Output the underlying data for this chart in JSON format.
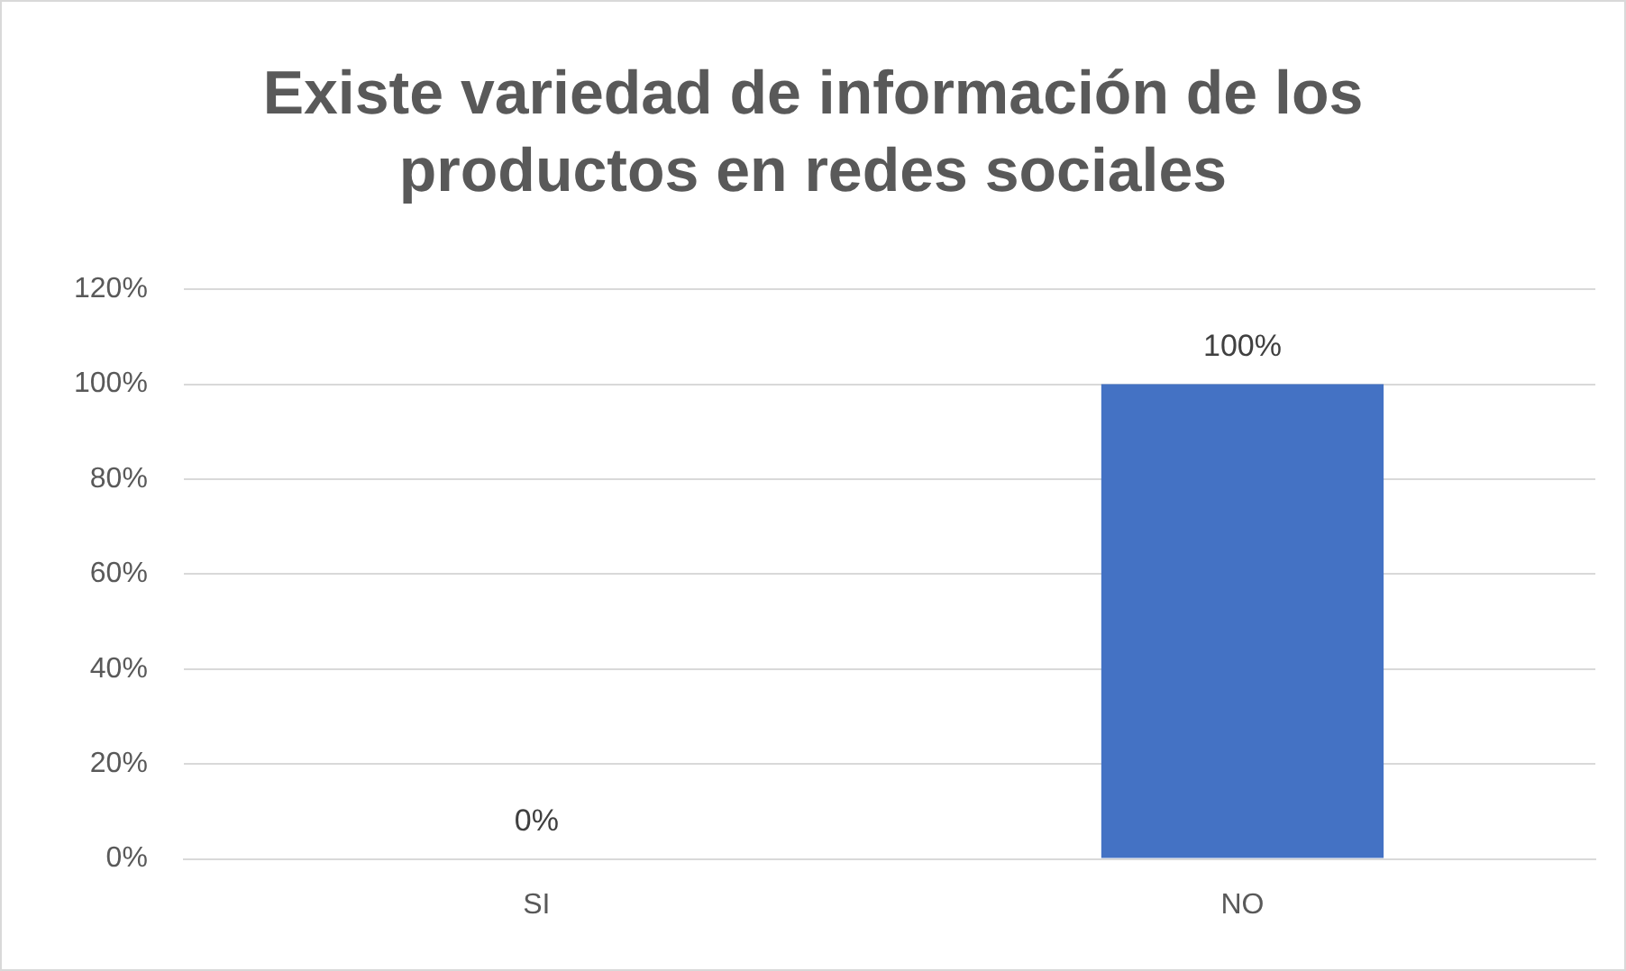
{
  "chart_data": {
    "type": "bar",
    "title": "Existe variedad de información de los productos en redes sociales",
    "categories": [
      "SI",
      "NO"
    ],
    "values": [
      0,
      100
    ],
    "value_labels": [
      "0%",
      "100%"
    ],
    "color": "#4472c4",
    "ylim": [
      0,
      120
    ],
    "yticks": [
      {
        "value": 0,
        "label": "0%"
      },
      {
        "value": 20,
        "label": "20%"
      },
      {
        "value": 40,
        "label": "40%"
      },
      {
        "value": 60,
        "label": "60%"
      },
      {
        "value": 80,
        "label": "80%"
      },
      {
        "value": 100,
        "label": "100%"
      },
      {
        "value": 120,
        "label": "120%"
      }
    ],
    "grid": "y",
    "legend": false
  }
}
